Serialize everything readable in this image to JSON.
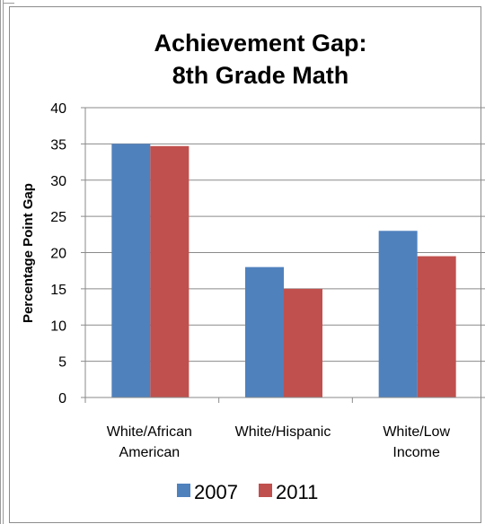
{
  "chart_data": {
    "type": "bar",
    "title": [
      "Achievement Gap:",
      "8th Grade Math"
    ],
    "xlabel": "",
    "ylabel": "Percentage Point Gap",
    "ylim": [
      0,
      40
    ],
    "yticks": [
      0,
      5,
      10,
      15,
      20,
      25,
      30,
      35,
      40
    ],
    "categories": [
      [
        "White/African",
        "American"
      ],
      [
        "White/Hispanic"
      ],
      [
        "White/Low",
        "Income"
      ]
    ],
    "series": [
      {
        "name": "2007",
        "color": "#4f81bd",
        "values": [
          35,
          18,
          23
        ]
      },
      {
        "name": "2011",
        "color": "#c0504d",
        "values": [
          34.7,
          15,
          19.5
        ]
      }
    ],
    "grid": true,
    "legend": "bottom"
  }
}
